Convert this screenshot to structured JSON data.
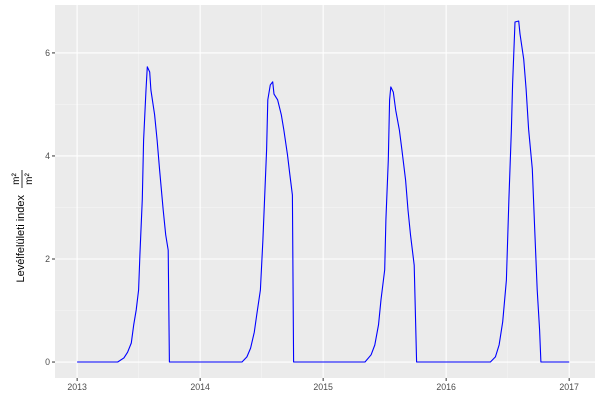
{
  "chart_data": {
    "type": "line",
    "title": "",
    "xlabel": "",
    "ylabel": "Levélfelületi index",
    "ylabel_unit_numerator": "m²",
    "ylabel_unit_denominator": "m²",
    "xlim": [
      2012.82,
      2017.21
    ],
    "ylim": [
      -0.31,
      6.93
    ],
    "x_ticks": [
      2013,
      2014,
      2015,
      2016,
      2017
    ],
    "x_tick_labels": [
      "2013",
      "2014",
      "2015",
      "2016",
      "2017"
    ],
    "y_ticks": [
      0,
      2,
      4,
      6
    ],
    "y_tick_labels": [
      "0",
      "2",
      "4",
      "6"
    ],
    "grid": true,
    "line_color": "#0000ff",
    "panel_background": "#ebebeb",
    "series": [
      {
        "x": [
          2013.0,
          2013.33,
          2013.38,
          2013.41,
          2013.44,
          2013.46,
          2013.48,
          2013.5,
          2013.51,
          2013.53,
          2013.54,
          2013.56,
          2013.57,
          2013.59,
          2013.6,
          2013.63,
          2013.65,
          2013.67,
          2013.7,
          2013.72,
          2013.74,
          2013.75,
          2014.34,
          2014.38,
          2014.41,
          2014.44,
          2014.46,
          2014.49,
          2014.51,
          2014.54,
          2014.55,
          2014.57,
          2014.59,
          2014.6,
          2014.63,
          2014.66,
          2014.68,
          2014.71,
          2014.73,
          2014.75,
          2014.76,
          2015.34,
          2015.39,
          2015.42,
          2015.45,
          2015.47,
          2015.5,
          2015.51,
          2015.53,
          2015.54,
          2015.55,
          2015.57,
          2015.59,
          2015.62,
          2015.64,
          2015.67,
          2015.69,
          2015.71,
          2015.74,
          2015.76,
          2016.36,
          2016.4,
          2016.43,
          2016.46,
          2016.49,
          2016.51,
          2016.53,
          2016.54,
          2016.56,
          2016.59,
          2016.6,
          2016.63,
          2016.65,
          2016.67,
          2016.7,
          2016.72,
          2016.74,
          2016.76,
          2016.77,
          2017.0
        ],
        "y": [
          0,
          0,
          0.08,
          0.19,
          0.37,
          0.72,
          1.01,
          1.4,
          2.08,
          3.16,
          4.31,
          5.28,
          5.73,
          5.63,
          5.28,
          4.8,
          4.31,
          3.73,
          2.95,
          2.47,
          2.17,
          0,
          0,
          0.1,
          0.27,
          0.58,
          0.91,
          1.4,
          2.37,
          4.12,
          5.09,
          5.38,
          5.44,
          5.2,
          5.09,
          4.8,
          4.51,
          4.02,
          3.63,
          3.24,
          0,
          0,
          0.14,
          0.33,
          0.72,
          1.21,
          1.79,
          2.76,
          3.92,
          5.09,
          5.34,
          5.24,
          4.89,
          4.5,
          4.12,
          3.53,
          2.95,
          2.47,
          1.88,
          0,
          0,
          0.1,
          0.33,
          0.78,
          1.59,
          3.16,
          4.52,
          5.4,
          6.6,
          6.62,
          6.37,
          5.88,
          5.3,
          4.52,
          3.75,
          2.58,
          1.4,
          0.62,
          0,
          0
        ]
      }
    ]
  }
}
